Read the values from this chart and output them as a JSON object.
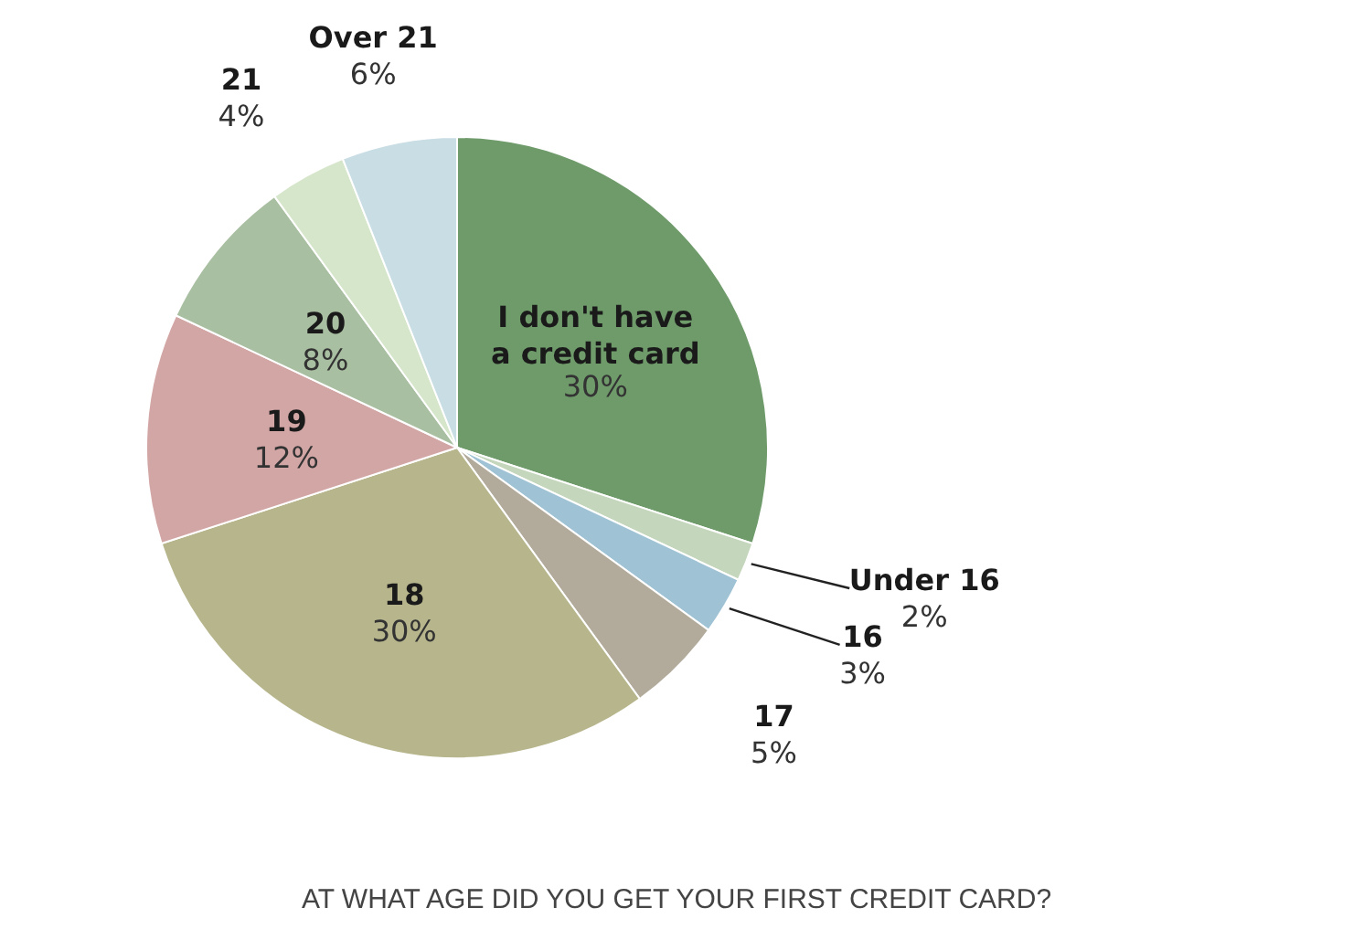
{
  "chart_data": {
    "type": "pie",
    "categories": [
      "I don't have a credit card",
      "Under 16",
      "16",
      "17",
      "18",
      "19",
      "20",
      "21",
      "Over 21"
    ],
    "values": [
      30,
      2,
      3,
      5,
      30,
      12,
      8,
      4,
      6
    ],
    "value_labels": [
      "30%",
      "2%",
      "3%",
      "5%",
      "30%",
      "12%",
      "8%",
      "4%",
      "6%"
    ],
    "colors": [
      "#6f9b6b",
      "#c4d6bb",
      "#9fc3d5",
      "#b2aa9b",
      "#b6b58c",
      "#d3a6a6",
      "#a9bfa1",
      "#d6e6cb",
      "#c8dde4"
    ],
    "annotations": [
      "AT WHAT AGE DID YOU GET YOUR FIRST CREDIT CARD?"
    ]
  }
}
